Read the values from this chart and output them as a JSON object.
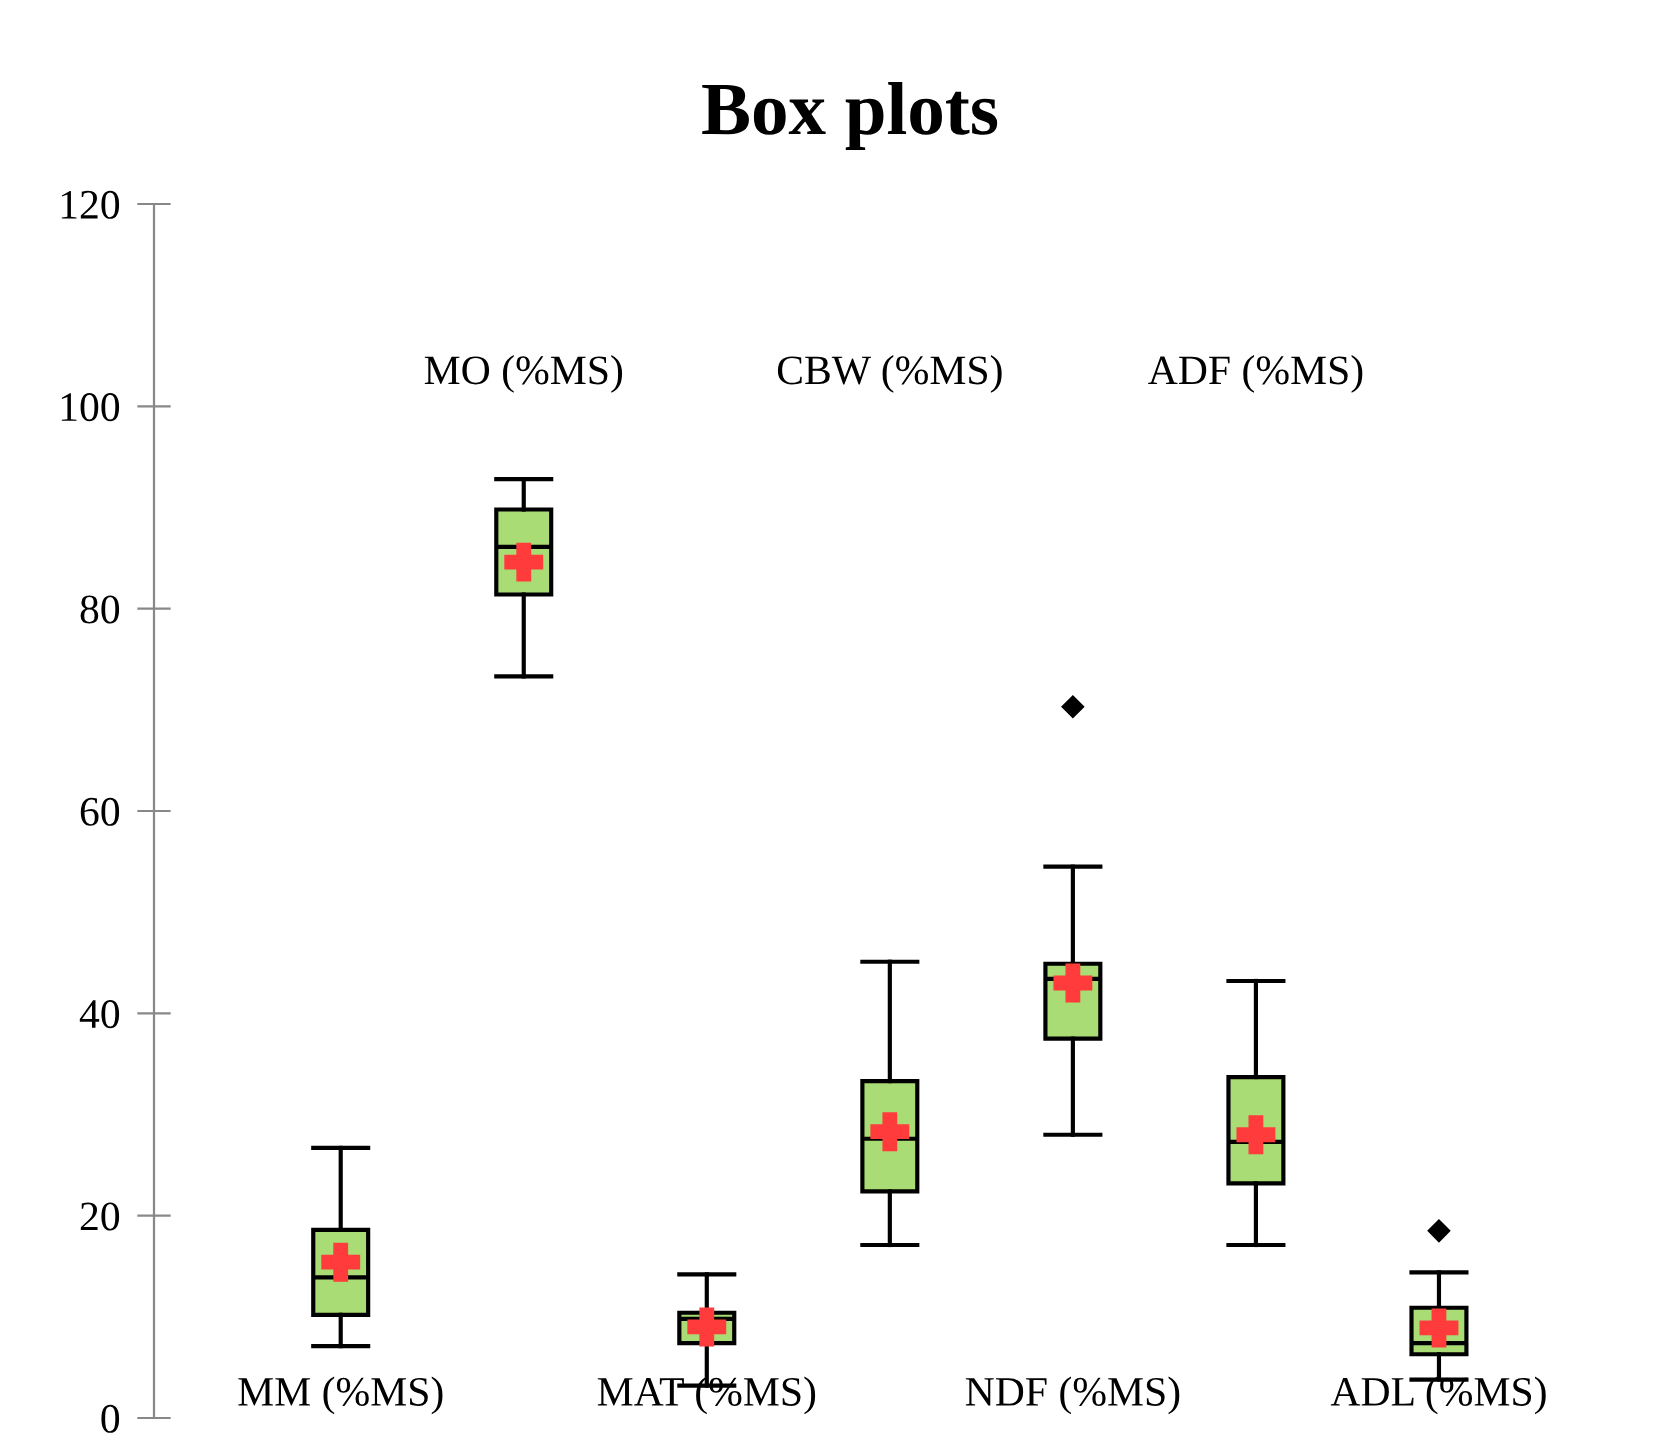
{
  "chart_data": {
    "type": "box",
    "title": "Box plots",
    "categories": [
      "MM (%MS)",
      "MO (%MS)",
      "MAT (%MS)",
      "CBW (%MS)",
      "NDF (%MS)",
      "ADF (%MS)",
      "ADL (%MS)"
    ],
    "color": "#a9dc74",
    "boxes": [
      {
        "low": 7.1,
        "q1": 10.2,
        "median": 13.9,
        "q3": 18.6,
        "high": 26.7,
        "mean": 15.4
      },
      {
        "low": 73.3,
        "q1": 81.4,
        "median": 86.1,
        "q3": 89.8,
        "high": 92.8,
        "mean": 84.6
      },
      {
        "low": 3.2,
        "q1": 7.4,
        "median": 9.8,
        "q3": 10.4,
        "high": 14.2,
        "mean": 9.0
      },
      {
        "low": 17.1,
        "q1": 22.4,
        "median": 27.6,
        "q3": 33.3,
        "high": 45.1,
        "mean": 28.3
      },
      {
        "low": 28.0,
        "q1": 37.5,
        "median": 43.4,
        "q3": 44.9,
        "high": 54.5,
        "mean": 43.0,
        "outliers": [
          70.3
        ]
      },
      {
        "low": 17.1,
        "q1": 23.2,
        "median": 27.3,
        "q3": 33.7,
        "high": 43.2,
        "mean": 28.0
      },
      {
        "low": 3.8,
        "q1": 6.3,
        "median": 7.4,
        "q3": 10.9,
        "high": 14.4,
        "mean": 8.9,
        "outliers": [
          18.5
        ]
      }
    ],
    "ylim": [
      0,
      120
    ],
    "yticks": [
      0,
      20,
      40,
      60,
      80,
      100,
      120
    ],
    "grid": false,
    "legend": false
  }
}
